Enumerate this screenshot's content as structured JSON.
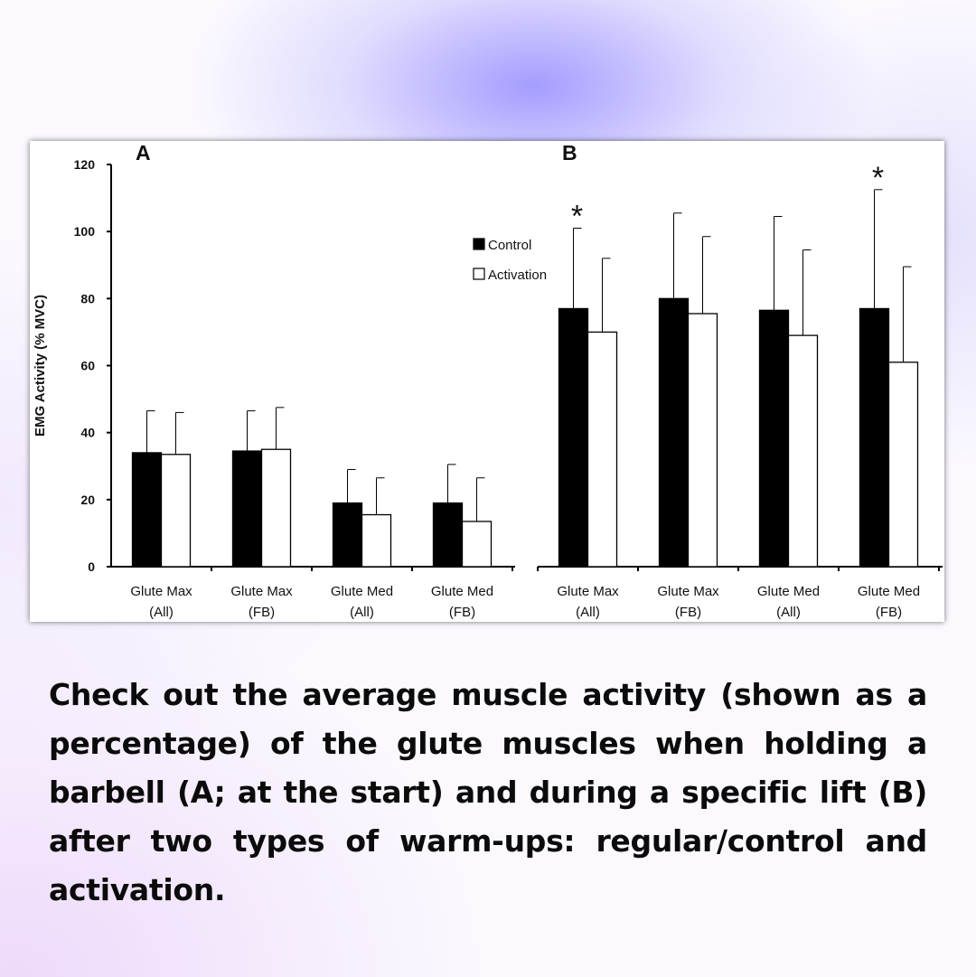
{
  "caption": "Check out the average muscle activity (shown as a percentage) of the glute muscles when holding a barbell (A; at the start) and during a specific lift (B) after two types of warm-ups: regular/control and activation.",
  "colors": {
    "control": "#000000",
    "activation": "#ffffff",
    "outline": "#000000"
  },
  "chart_data": {
    "type": "bar",
    "ylabel": "EMG Activity (% MVC)",
    "ylim": [
      0,
      120
    ],
    "yticks": [
      0,
      20,
      40,
      60,
      80,
      100,
      120
    ],
    "legend": {
      "placement": "top-right of panel A area",
      "entries": [
        "Control",
        "Activation"
      ]
    },
    "grid": false,
    "error_bars": "upper only",
    "panels": [
      {
        "label": "A",
        "categories": [
          [
            "Glute Max",
            "(All)"
          ],
          [
            "Glute Max",
            "(FB)"
          ],
          [
            "Glute Med",
            "(All)"
          ],
          [
            "Glute Med",
            "(FB)"
          ]
        ],
        "series": [
          {
            "name": "Control",
            "values": [
              34,
              34.5,
              19,
              19
            ],
            "errors": [
              12.5,
              12,
              10,
              11.5
            ]
          },
          {
            "name": "Activation",
            "values": [
              33.5,
              35,
              15.5,
              13.5
            ],
            "errors": [
              12.5,
              12.5,
              11,
              13
            ]
          }
        ],
        "significance": []
      },
      {
        "label": "B",
        "categories": [
          [
            "Glute Max",
            "(All)"
          ],
          [
            "Glute Max",
            "(FB)"
          ],
          [
            "Glute Med",
            "(All)"
          ],
          [
            "Glute Med",
            "(FB)"
          ]
        ],
        "series": [
          {
            "name": "Control",
            "values": [
              77,
              80,
              76.5,
              77
            ],
            "errors": [
              24,
              25.5,
              28,
              35.5
            ]
          },
          {
            "name": "Activation",
            "values": [
              70,
              75.5,
              69,
              61
            ],
            "errors": [
              22,
              23,
              25.5,
              28.5
            ]
          }
        ],
        "significance": [
          {
            "category": 0,
            "label": "*"
          },
          {
            "category": 3,
            "label": "*"
          }
        ]
      }
    ]
  }
}
